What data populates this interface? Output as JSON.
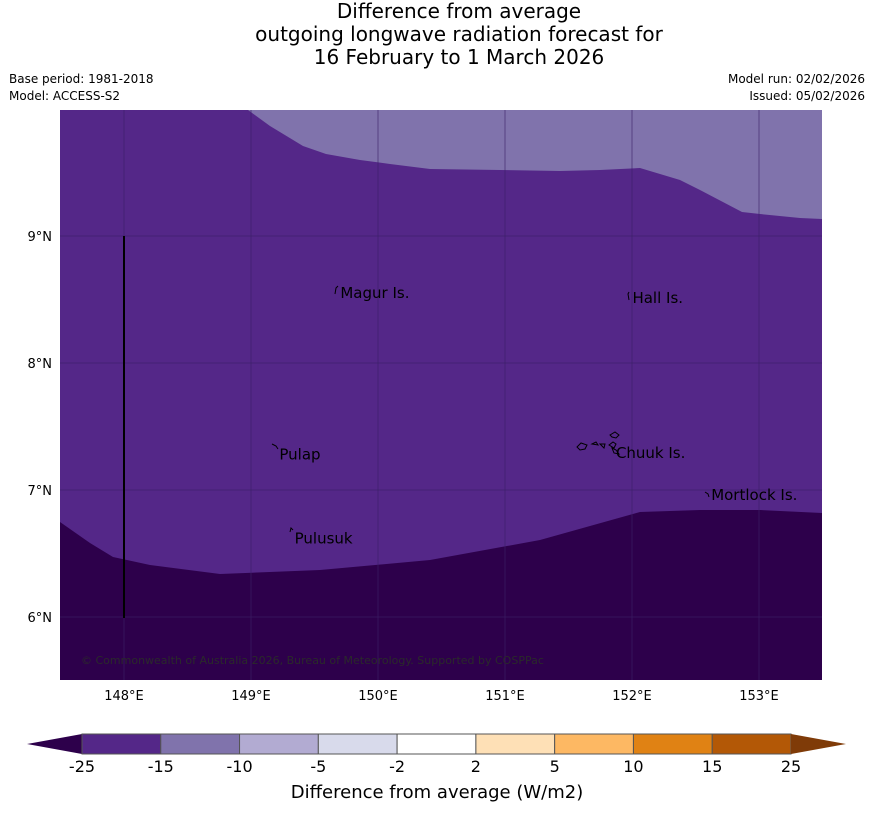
{
  "title": {
    "line1": "Difference from average",
    "line2": "outgoing longwave radiation forecast for",
    "line3": "16 February to 1 March 2026"
  },
  "meta": {
    "base_period": "Base period: 1981-2018",
    "model": "Model: ACCESS-S2",
    "model_run": "Model run: 02/02/2026",
    "issued": "Issued: 05/02/2026"
  },
  "map": {
    "lat_labels": [
      "9°N",
      "8°N",
      "7°N",
      "6°N"
    ],
    "lon_labels": [
      "148°E",
      "149°E",
      "150°E",
      "151°E",
      "152°E",
      "153°E"
    ],
    "places": [
      {
        "name": "Magur Is.",
        "lon": 149.68,
        "lat": 8.55
      },
      {
        "name": "Hall Is.",
        "lon": 151.98,
        "lat": 8.51
      },
      {
        "name": "Pulap",
        "lon": 149.2,
        "lat": 7.28
      },
      {
        "name": "Chuuk Is.",
        "lon": 151.85,
        "lat": 7.29
      },
      {
        "name": "Mortlock Is.",
        "lon": 152.6,
        "lat": 6.96
      },
      {
        "name": "Pulusuk",
        "lon": 149.32,
        "lat": 6.62
      }
    ],
    "copyright": "© Commonwealth of Australia 2026, Bureau of Meteorology. Supported by COSPPac",
    "colors": {
      "band_lt_m25": "#2d004b",
      "band_m25_m15": "#542788",
      "band_m15_m10": "#8073ac",
      "grid": "#3a1f66"
    }
  },
  "colorbar": {
    "tick_labels": [
      "-25",
      "-15",
      "-10",
      "-5",
      "-2",
      "2",
      "5",
      "10",
      "15",
      "25"
    ],
    "label": "Difference from average (W/m2)",
    "low_extend_color": "#2d004b",
    "high_extend_color": "#7f3b08",
    "colors": [
      "#542788",
      "#8073ac",
      "#b2abd2",
      "#d8daeb",
      "#ffffff",
      "#fee0b6",
      "#fdb863",
      "#e08214",
      "#b35806"
    ]
  }
}
